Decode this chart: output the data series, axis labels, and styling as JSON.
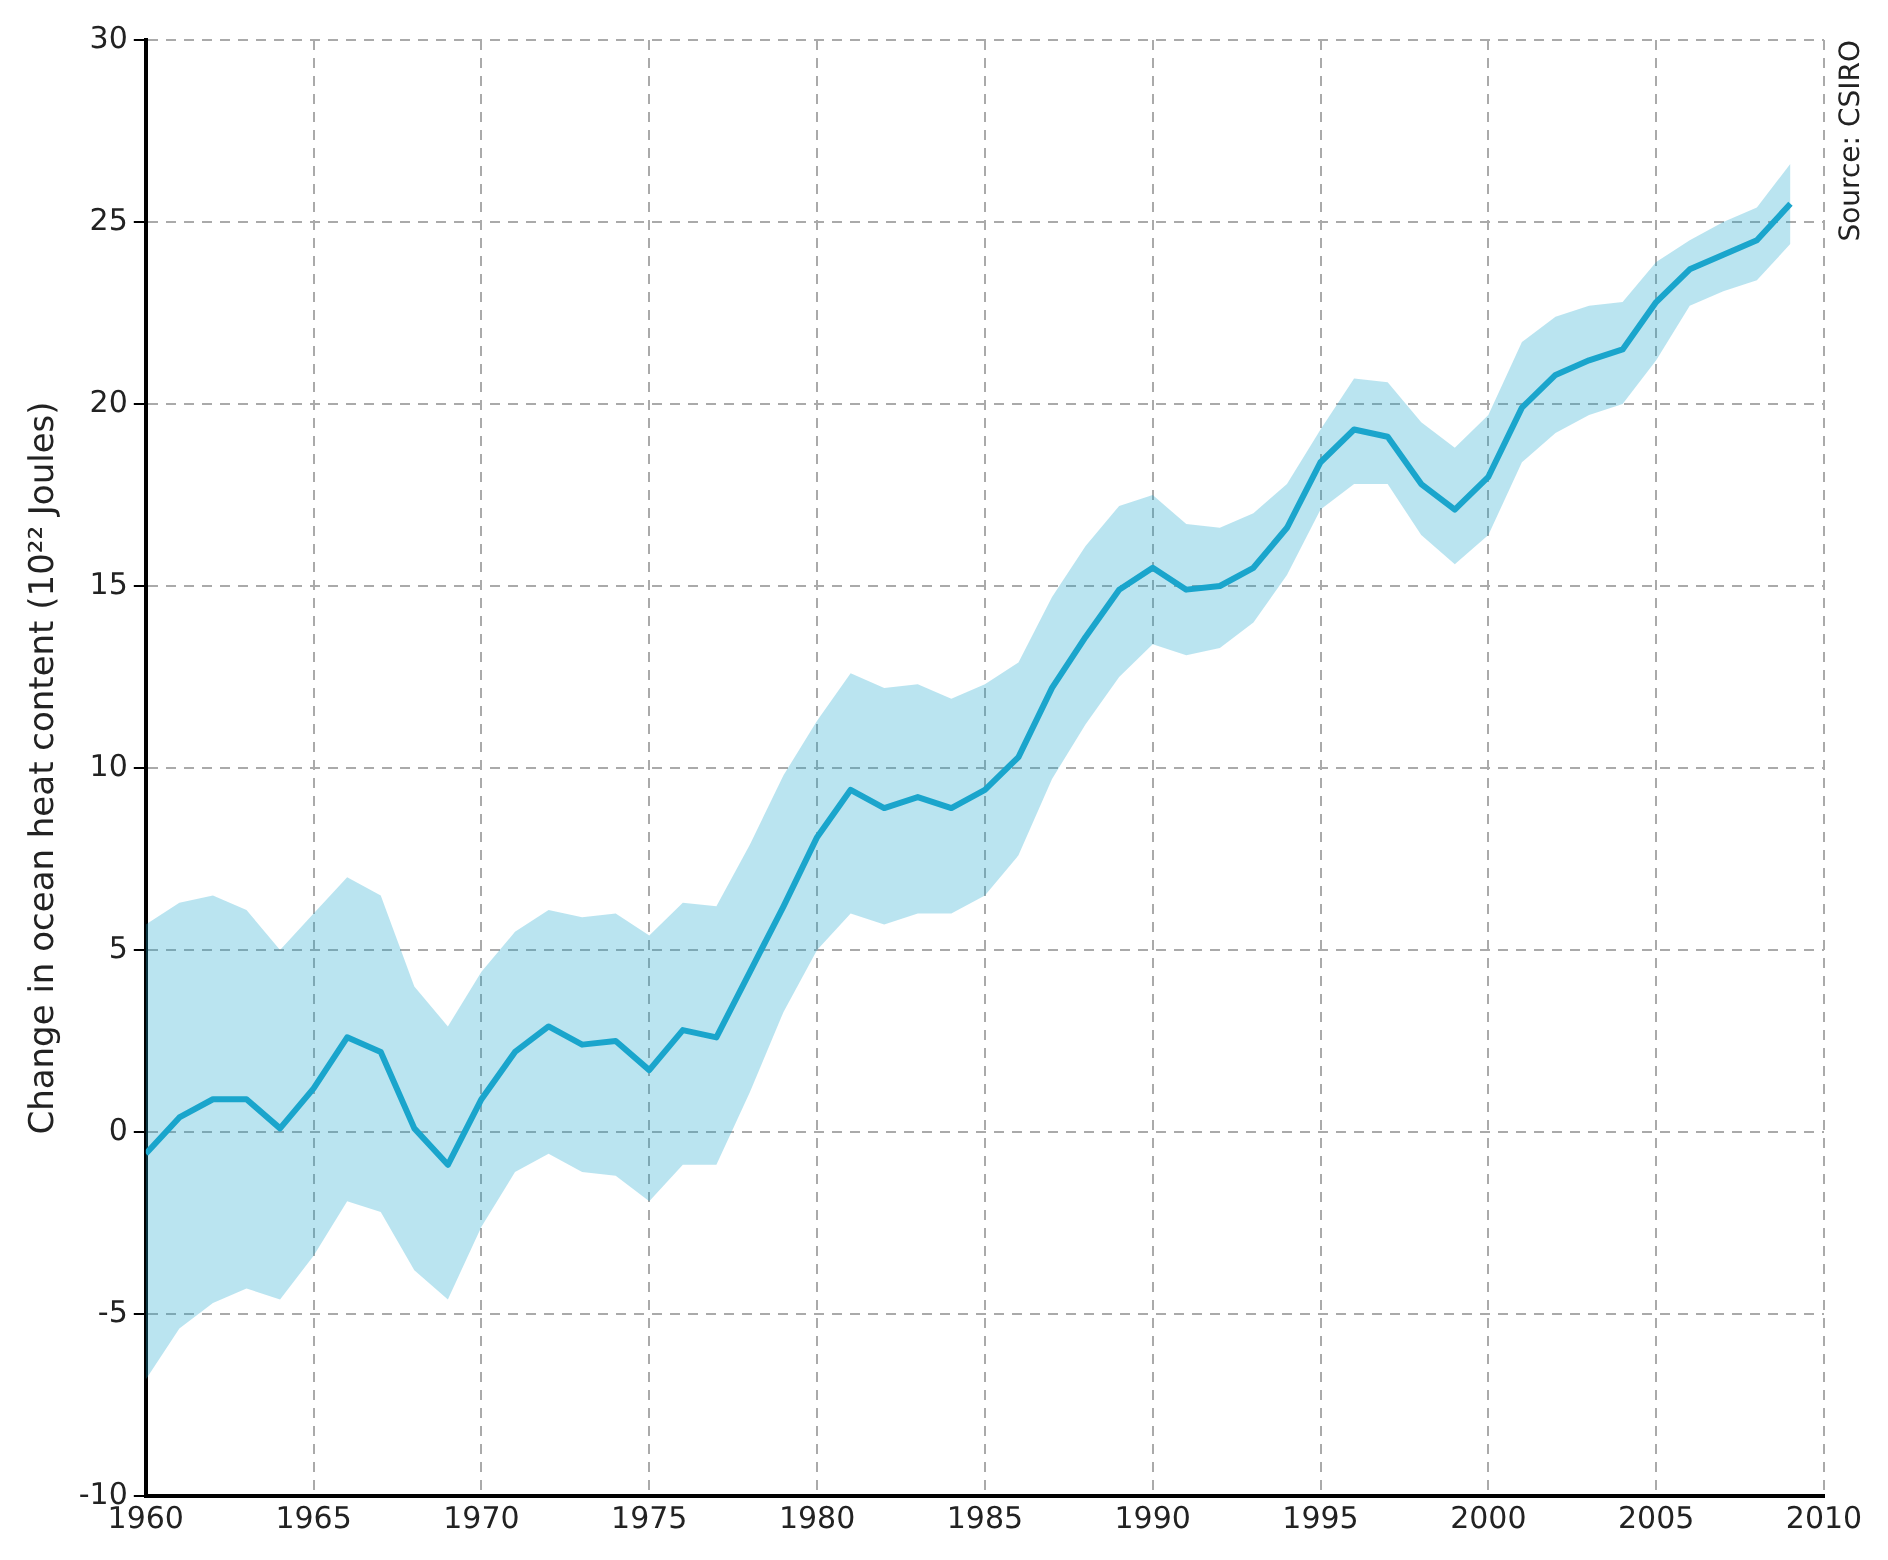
{
  "chart_data": {
    "type": "line",
    "ylabel": "Change in ocean heat content (10²² Joules)",
    "annotations": [
      "Source: CSIRO"
    ],
    "x": [
      1960,
      1961,
      1962,
      1963,
      1964,
      1965,
      1966,
      1967,
      1968,
      1969,
      1970,
      1971,
      1972,
      1973,
      1974,
      1975,
      1976,
      1977,
      1978,
      1979,
      1980,
      1981,
      1982,
      1983,
      1984,
      1985,
      1986,
      1987,
      1988,
      1989,
      1990,
      1991,
      1992,
      1993,
      1994,
      1995,
      1996,
      1997,
      1998,
      1999,
      2000,
      2001,
      2002,
      2003,
      2004,
      2005,
      2006,
      2007,
      2008,
      2009
    ],
    "series": [
      {
        "color": "#1aa5cc",
        "values": [
          -0.6,
          0.4,
          0.9,
          0.9,
          0.1,
          1.2,
          2.6,
          2.2,
          0.1,
          -0.9,
          0.9,
          2.2,
          2.9,
          2.4,
          2.5,
          1.7,
          2.8,
          2.6,
          4.4,
          6.2,
          8.1,
          9.4,
          8.9,
          9.2,
          8.9,
          9.4,
          10.3,
          12.2,
          13.6,
          14.9,
          15.5,
          14.9,
          15.0,
          15.5,
          16.6,
          18.4,
          19.3,
          19.1,
          17.8,
          17.1,
          18.0,
          19.9,
          20.8,
          21.2,
          21.5,
          22.8,
          23.7,
          24.1,
          24.5,
          25.5
        ],
        "upper": [
          5.7,
          6.3,
          6.5,
          6.1,
          5.0,
          6.0,
          7.0,
          6.5,
          4.0,
          2.9,
          4.4,
          5.5,
          6.1,
          5.9,
          6.0,
          5.4,
          6.3,
          6.2,
          7.9,
          9.8,
          11.3,
          12.6,
          12.2,
          12.3,
          11.9,
          12.3,
          12.9,
          14.7,
          16.1,
          17.2,
          17.5,
          16.7,
          16.6,
          17.0,
          17.8,
          19.3,
          20.7,
          20.6,
          19.5,
          18.8,
          19.7,
          21.7,
          22.4,
          22.7,
          22.8,
          23.9,
          24.5,
          25.0,
          25.4,
          26.6
        ],
        "lower": [
          -6.8,
          -5.4,
          -4.7,
          -4.3,
          -4.6,
          -3.4,
          -1.9,
          -2.2,
          -3.8,
          -4.6,
          -2.6,
          -1.1,
          -0.6,
          -1.1,
          -1.2,
          -1.9,
          -0.9,
          -0.9,
          1.1,
          3.3,
          5.0,
          6.0,
          5.7,
          6.0,
          6.0,
          6.5,
          7.6,
          9.7,
          11.2,
          12.5,
          13.4,
          13.1,
          13.3,
          14.0,
          15.3,
          17.1,
          17.8,
          17.8,
          16.4,
          15.6,
          16.4,
          18.4,
          19.2,
          19.7,
          20.0,
          21.2,
          22.7,
          23.1,
          23.4,
          24.4
        ]
      }
    ],
    "xlim": [
      1960,
      2010
    ],
    "xticks": [
      1960,
      1965,
      1970,
      1975,
      1980,
      1985,
      1990,
      1995,
      2000,
      2005,
      2010
    ],
    "ylim": [
      -10,
      30
    ],
    "yticks": [
      -10,
      -5,
      0,
      5,
      10,
      15,
      20,
      25,
      30
    ],
    "grid": true,
    "legend": false,
    "marker": "none",
    "line_style": "solid"
  }
}
